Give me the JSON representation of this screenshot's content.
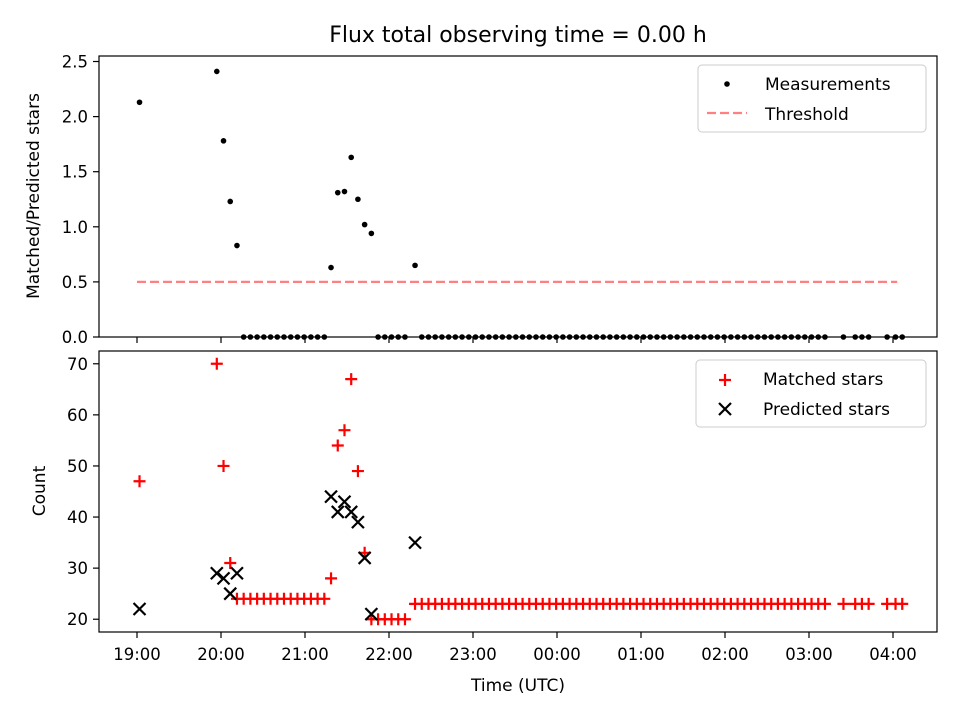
{
  "figure": {
    "title": "Flux total observing time = 0.00 h",
    "xlabel": "Time (UTC)",
    "xticks": [
      "19:00",
      "20:00",
      "21:00",
      "22:00",
      "23:00",
      "00:00",
      "01:00",
      "02:00",
      "03:00",
      "04:00"
    ],
    "colors": {
      "matched": "#ff0000",
      "threshold": "#ff8080",
      "measurements": "#000000",
      "predicted": "#000000"
    }
  },
  "chart_data": [
    {
      "type": "scatter",
      "ylabel": "Matched/Predicted stars",
      "x_unit": "hours since 19:00 UTC",
      "ylim": [
        0,
        2.55
      ],
      "yticks": [
        "0.0",
        "0.5",
        "1.0",
        "1.5",
        "2.0",
        "2.5"
      ],
      "ytick_values": [
        0,
        0.5,
        1.0,
        1.5,
        2.0,
        2.5
      ],
      "legend_position": "top-right",
      "legend": [
        "Measurements",
        "Threshold"
      ],
      "series": [
        {
          "name": "Measurements",
          "points": [
            [
              0.03,
              2.13
            ],
            [
              0.95,
              2.41
            ],
            [
              1.03,
              1.78
            ],
            [
              1.11,
              1.23
            ],
            [
              1.19,
              0.83
            ],
            [
              1.27,
              0
            ],
            [
              1.35,
              0
            ],
            [
              1.43,
              0
            ],
            [
              1.51,
              0
            ],
            [
              1.59,
              0
            ],
            [
              1.67,
              0
            ],
            [
              1.75,
              0
            ],
            [
              1.83,
              0
            ],
            [
              1.91,
              0
            ],
            [
              1.99,
              0
            ],
            [
              2.07,
              0
            ],
            [
              2.15,
              0
            ],
            [
              2.23,
              0
            ],
            [
              2.31,
              0.63
            ],
            [
              2.39,
              1.31
            ],
            [
              2.47,
              1.32
            ],
            [
              2.55,
              1.63
            ],
            [
              2.63,
              1.25
            ],
            [
              2.71,
              1.02
            ],
            [
              2.79,
              0.94
            ],
            [
              2.87,
              0
            ],
            [
              2.95,
              0
            ],
            [
              3.03,
              0
            ],
            [
              3.11,
              0
            ],
            [
              3.19,
              0
            ],
            [
              3.31,
              0.65
            ],
            [
              3.39,
              0
            ],
            [
              3.47,
              0
            ],
            [
              3.55,
              0
            ],
            [
              3.63,
              0
            ],
            [
              3.71,
              0
            ],
            [
              3.79,
              0
            ],
            [
              3.87,
              0
            ],
            [
              3.95,
              0
            ],
            [
              4.03,
              0
            ],
            [
              4.11,
              0
            ],
            [
              4.19,
              0
            ],
            [
              4.27,
              0
            ],
            [
              4.35,
              0
            ],
            [
              4.43,
              0
            ],
            [
              4.51,
              0
            ],
            [
              4.59,
              0
            ],
            [
              4.67,
              0
            ],
            [
              4.75,
              0
            ],
            [
              4.83,
              0
            ],
            [
              4.91,
              0
            ],
            [
              4.99,
              0
            ],
            [
              5.07,
              0
            ],
            [
              5.15,
              0
            ],
            [
              5.23,
              0
            ],
            [
              5.31,
              0
            ],
            [
              5.39,
              0
            ],
            [
              5.47,
              0
            ],
            [
              5.55,
              0
            ],
            [
              5.63,
              0
            ],
            [
              5.71,
              0
            ],
            [
              5.79,
              0
            ],
            [
              5.87,
              0
            ],
            [
              5.95,
              0
            ],
            [
              6.03,
              0
            ],
            [
              6.11,
              0
            ],
            [
              6.19,
              0
            ],
            [
              6.27,
              0
            ],
            [
              6.35,
              0
            ],
            [
              6.43,
              0
            ],
            [
              6.51,
              0
            ],
            [
              6.59,
              0
            ],
            [
              6.67,
              0
            ],
            [
              6.75,
              0
            ],
            [
              6.83,
              0
            ],
            [
              6.91,
              0
            ],
            [
              6.99,
              0
            ],
            [
              7.07,
              0
            ],
            [
              7.15,
              0
            ],
            [
              7.23,
              0
            ],
            [
              7.31,
              0
            ],
            [
              7.39,
              0
            ],
            [
              7.47,
              0
            ],
            [
              7.55,
              0
            ],
            [
              7.63,
              0
            ],
            [
              7.71,
              0
            ],
            [
              7.79,
              0
            ],
            [
              7.87,
              0
            ],
            [
              7.95,
              0
            ],
            [
              8.03,
              0
            ],
            [
              8.11,
              0
            ],
            [
              8.19,
              0
            ],
            [
              8.41,
              0
            ],
            [
              8.55,
              0
            ],
            [
              8.63,
              0
            ],
            [
              8.71,
              0
            ],
            [
              8.93,
              0
            ],
            [
              9.03,
              0
            ],
            [
              9.11,
              0
            ]
          ]
        },
        {
          "name": "Threshold",
          "style": "dashed",
          "points": [
            [
              0,
              0.5
            ],
            [
              9.05,
              0.5
            ]
          ]
        }
      ]
    },
    {
      "type": "scatter",
      "ylabel": "Count",
      "x_unit": "hours since 19:00 UTC",
      "ylim": [
        17.5,
        72.5
      ],
      "yticks": [
        "20",
        "30",
        "40",
        "50",
        "60",
        "70"
      ],
      "ytick_values": [
        20,
        30,
        40,
        50,
        60,
        70
      ],
      "legend_position": "top-right",
      "legend": [
        "Matched stars",
        "Predicted stars"
      ],
      "series": [
        {
          "name": "Matched stars",
          "marker": "plus",
          "points": [
            [
              0.03,
              47
            ],
            [
              0.95,
              70
            ],
            [
              1.03,
              50
            ],
            [
              1.11,
              31
            ],
            [
              1.19,
              24
            ],
            [
              1.27,
              24
            ],
            [
              1.35,
              24
            ],
            [
              1.43,
              24
            ],
            [
              1.51,
              24
            ],
            [
              1.59,
              24
            ],
            [
              1.67,
              24
            ],
            [
              1.75,
              24
            ],
            [
              1.83,
              24
            ],
            [
              1.91,
              24
            ],
            [
              1.99,
              24
            ],
            [
              2.07,
              24
            ],
            [
              2.15,
              24
            ],
            [
              2.23,
              24
            ],
            [
              2.31,
              28
            ],
            [
              2.39,
              54
            ],
            [
              2.47,
              57
            ],
            [
              2.55,
              67
            ],
            [
              2.63,
              49
            ],
            [
              2.71,
              33
            ],
            [
              2.79,
              20
            ],
            [
              2.87,
              20
            ],
            [
              2.95,
              20
            ],
            [
              3.03,
              20
            ],
            [
              3.11,
              20
            ],
            [
              3.19,
              20
            ],
            [
              3.31,
              23
            ],
            [
              3.39,
              23
            ],
            [
              3.47,
              23
            ],
            [
              3.55,
              23
            ],
            [
              3.63,
              23
            ],
            [
              3.71,
              23
            ],
            [
              3.79,
              23
            ],
            [
              3.87,
              23
            ],
            [
              3.95,
              23
            ],
            [
              4.03,
              23
            ],
            [
              4.11,
              23
            ],
            [
              4.19,
              23
            ],
            [
              4.27,
              23
            ],
            [
              4.35,
              23
            ],
            [
              4.43,
              23
            ],
            [
              4.51,
              23
            ],
            [
              4.59,
              23
            ],
            [
              4.67,
              23
            ],
            [
              4.75,
              23
            ],
            [
              4.83,
              23
            ],
            [
              4.91,
              23
            ],
            [
              4.99,
              23
            ],
            [
              5.07,
              23
            ],
            [
              5.15,
              23
            ],
            [
              5.23,
              23
            ],
            [
              5.31,
              23
            ],
            [
              5.39,
              23
            ],
            [
              5.47,
              23
            ],
            [
              5.55,
              23
            ],
            [
              5.63,
              23
            ],
            [
              5.71,
              23
            ],
            [
              5.79,
              23
            ],
            [
              5.87,
              23
            ],
            [
              5.95,
              23
            ],
            [
              6.03,
              23
            ],
            [
              6.11,
              23
            ],
            [
              6.19,
              23
            ],
            [
              6.27,
              23
            ],
            [
              6.35,
              23
            ],
            [
              6.43,
              23
            ],
            [
              6.51,
              23
            ],
            [
              6.59,
              23
            ],
            [
              6.67,
              23
            ],
            [
              6.75,
              23
            ],
            [
              6.83,
              23
            ],
            [
              6.91,
              23
            ],
            [
              6.99,
              23
            ],
            [
              7.07,
              23
            ],
            [
              7.15,
              23
            ],
            [
              7.23,
              23
            ],
            [
              7.31,
              23
            ],
            [
              7.39,
              23
            ],
            [
              7.47,
              23
            ],
            [
              7.55,
              23
            ],
            [
              7.63,
              23
            ],
            [
              7.71,
              23
            ],
            [
              7.79,
              23
            ],
            [
              7.87,
              23
            ],
            [
              7.95,
              23
            ],
            [
              8.03,
              23
            ],
            [
              8.11,
              23
            ],
            [
              8.19,
              23
            ],
            [
              8.41,
              23
            ],
            [
              8.55,
              23
            ],
            [
              8.63,
              23
            ],
            [
              8.71,
              23
            ],
            [
              8.93,
              23
            ],
            [
              9.03,
              23
            ],
            [
              9.11,
              23
            ]
          ]
        },
        {
          "name": "Predicted stars",
          "marker": "x",
          "points": [
            [
              0.03,
              22
            ],
            [
              0.95,
              29
            ],
            [
              1.03,
              28
            ],
            [
              1.11,
              25
            ],
            [
              1.19,
              29
            ],
            [
              2.31,
              44
            ],
            [
              2.39,
              41
            ],
            [
              2.47,
              43
            ],
            [
              2.55,
              41
            ],
            [
              2.63,
              39
            ],
            [
              2.71,
              32
            ],
            [
              2.79,
              21
            ],
            [
              3.31,
              35
            ]
          ]
        }
      ]
    }
  ]
}
